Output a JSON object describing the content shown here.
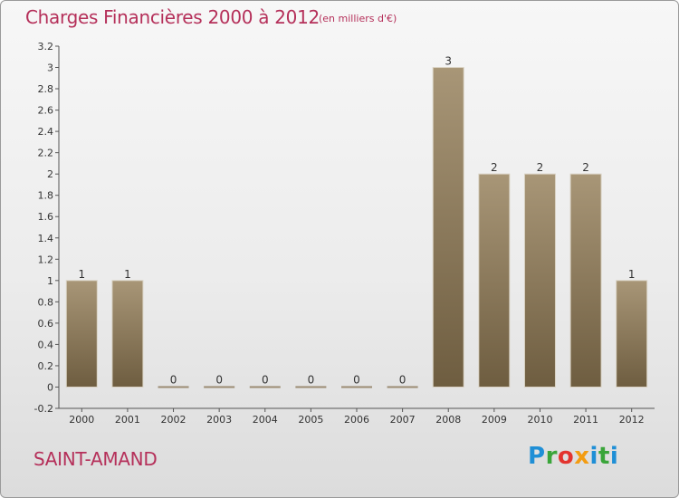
{
  "header": {
    "title": "Charges Financières 2000 à 2012",
    "subtitle": "(en milliers d'€)"
  },
  "footer": {
    "commune": "SAINT-AMAND",
    "logo_letters": [
      "P",
      "r",
      "o",
      "x",
      "i",
      "t",
      "i"
    ]
  },
  "colors": {
    "title": "#b5305a",
    "bar_top": "#a89677",
    "bar_bottom": "#6e5d40"
  },
  "chart_data": {
    "type": "bar",
    "title": "Charges Financières 2000 à 2012",
    "subtitle": "(en milliers d'€)",
    "categories": [
      "2000",
      "2001",
      "2002",
      "2003",
      "2004",
      "2005",
      "2006",
      "2007",
      "2008",
      "2009",
      "2010",
      "2011",
      "2012"
    ],
    "values": [
      1,
      1,
      0,
      0,
      0,
      0,
      0,
      0,
      3,
      2,
      2,
      2,
      1
    ],
    "ylim": [
      -0.2,
      3.2
    ],
    "yticks": [
      -0.2,
      0,
      0.2,
      0.4,
      0.6,
      0.8,
      1,
      1.2,
      1.4,
      1.6,
      1.8,
      2,
      2.2,
      2.4,
      2.6,
      2.8,
      3,
      3.2
    ],
    "ytick_labels": [
      "-0.2",
      "0",
      "0.2",
      "0.4",
      "0.6",
      "0.8",
      "1",
      "1.2",
      "1.4",
      "1.6",
      "1.8",
      "2",
      "2.2",
      "2.4",
      "2.6",
      "2.8",
      "3",
      "3.2"
    ],
    "grid": false
  }
}
